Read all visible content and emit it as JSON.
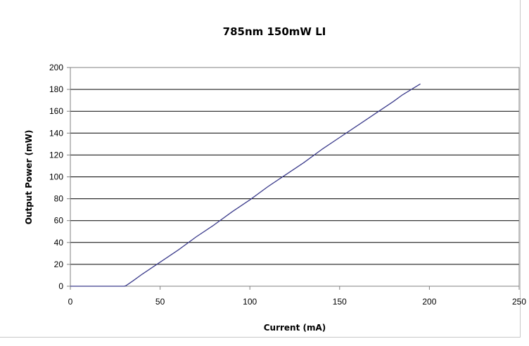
{
  "chart_data": {
    "type": "line",
    "title": "785nm 150mW LI",
    "xlabel": "Current (mA)",
    "ylabel": "Output Power (mW)",
    "xlim": [
      0,
      250
    ],
    "ylim": [
      0,
      200
    ],
    "xticks": [
      "0",
      "50",
      "100",
      "150",
      "200",
      "250"
    ],
    "yticks": [
      "0",
      "20",
      "40",
      "60",
      "80",
      "100",
      "120",
      "140",
      "160",
      "180",
      "200"
    ],
    "grid": "horizontal",
    "legend": "none",
    "series": [
      {
        "color": "#3c3c8c",
        "x": [
          0,
          10,
          20,
          30,
          31,
          35,
          40,
          50,
          60,
          70,
          80,
          90,
          100,
          110,
          120,
          130,
          140,
          150,
          160,
          170,
          180,
          185,
          190,
          195
        ],
        "y": [
          0,
          0,
          0,
          0,
          0.5,
          5,
          11,
          22,
          33,
          45,
          56,
          68,
          79,
          91,
          102,
          113,
          125,
          136,
          147,
          158,
          169,
          175,
          180,
          185
        ]
      }
    ]
  }
}
